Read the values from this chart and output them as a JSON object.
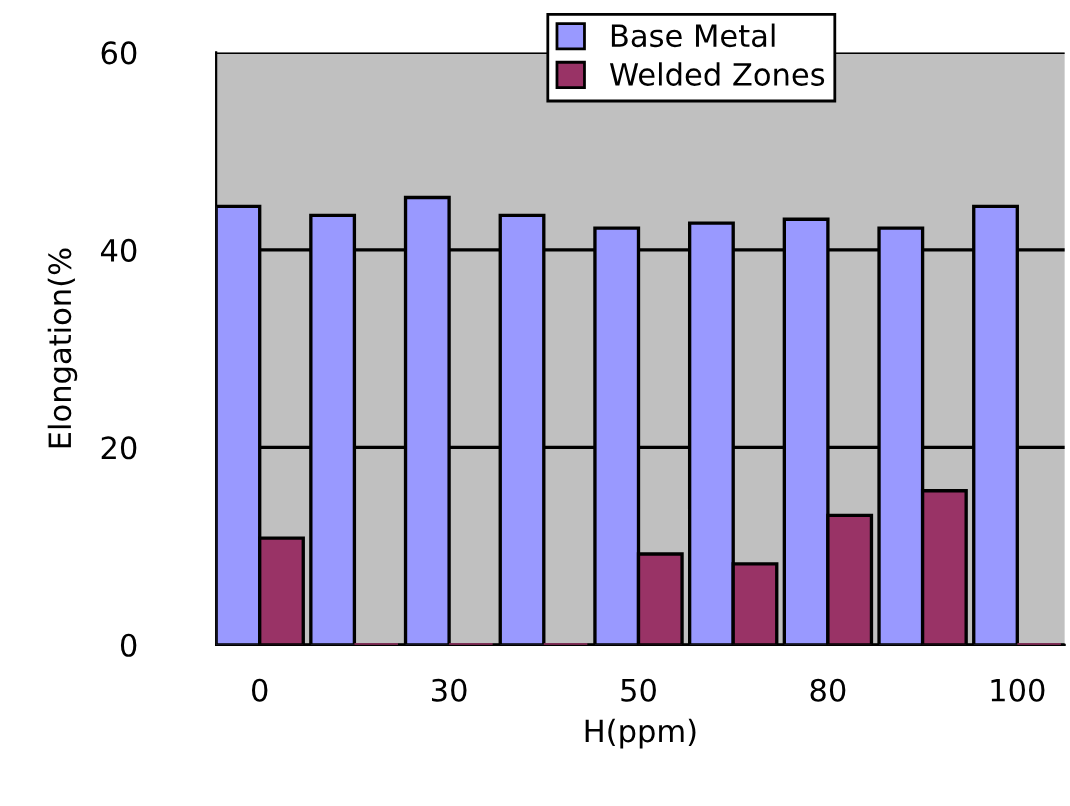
{
  "chart_data": {
    "type": "bar",
    "xlabel": "H(ppm)",
    "ylabel": "Elongation(%",
    "categories": [
      "0",
      null,
      "30",
      null,
      "50",
      null,
      "80",
      null,
      "100"
    ],
    "series": [
      {
        "name": "Base Metal",
        "color": "#9999ff",
        "values": [
          44.4,
          43.5,
          45.3,
          43.5,
          42.2,
          42.7,
          43.1,
          42.2,
          44.4
        ]
      },
      {
        "name": "Welded Zones",
        "color": "#993366",
        "values": [
          10.8,
          0,
          0,
          0,
          9.2,
          8.2,
          13.1,
          15.6,
          0
        ]
      }
    ],
    "ylim": [
      0,
      60
    ],
    "yticks": [
      0,
      20,
      40,
      60
    ],
    "grid": "y",
    "legend": "top"
  }
}
